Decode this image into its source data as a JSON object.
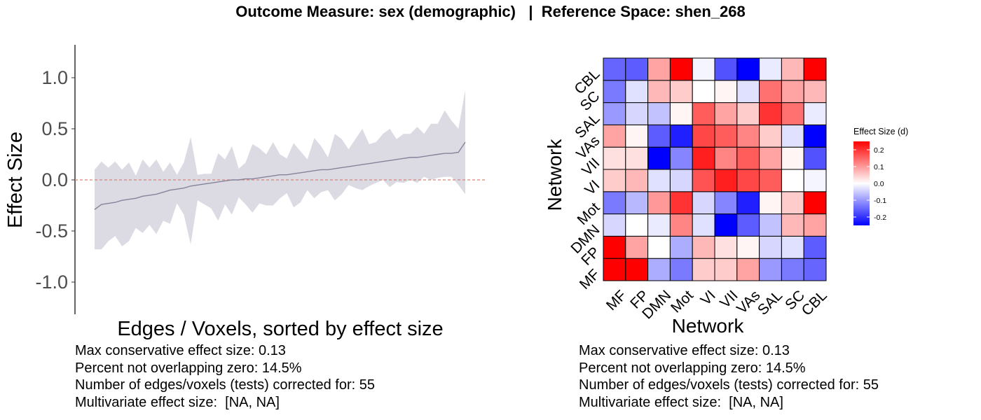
{
  "title": "Outcome Measure: sex (demographic)   |  Reference Space: shen_268",
  "chart_data": [
    {
      "type": "line",
      "ylabel": "Effect Size",
      "xlabel": "Edges / Voxels, sorted by effect size",
      "ylim": [
        -1.3,
        1.3
      ],
      "yticks": [
        -1.0,
        -0.5,
        0.0,
        0.5,
        1.0
      ],
      "ytick_labels": [
        "-1.0",
        "-0.5",
        "0.0",
        "0.5",
        "1.0"
      ],
      "reference_line": 0,
      "series": [
        {
          "values": [
            -0.29,
            -0.24,
            -0.23,
            -0.22,
            -0.2,
            -0.19,
            -0.18,
            -0.16,
            -0.15,
            -0.14,
            -0.12,
            -0.1,
            -0.09,
            -0.08,
            -0.06,
            -0.05,
            -0.04,
            -0.03,
            -0.02,
            -0.01,
            0.0,
            0.0,
            0.01,
            0.01,
            0.02,
            0.03,
            0.04,
            0.05,
            0.05,
            0.06,
            0.07,
            0.08,
            0.09,
            0.1,
            0.1,
            0.11,
            0.12,
            0.13,
            0.14,
            0.15,
            0.16,
            0.17,
            0.18,
            0.19,
            0.2,
            0.21,
            0.22,
            0.22,
            0.23,
            0.24,
            0.25,
            0.26,
            0.26,
            0.27,
            0.37
          ],
          "lower": [
            -0.68,
            -0.68,
            -0.6,
            -0.55,
            -0.65,
            -0.6,
            -0.47,
            -0.52,
            -0.44,
            -0.53,
            -0.4,
            -0.43,
            -0.23,
            -0.34,
            -0.63,
            -0.2,
            -0.24,
            -0.28,
            -0.4,
            -0.24,
            -0.34,
            -0.17,
            -0.24,
            -0.32,
            -0.23,
            -0.25,
            -0.25,
            -0.18,
            -0.13,
            -0.27,
            -0.22,
            -0.1,
            -0.18,
            -0.12,
            -0.1,
            -0.2,
            -0.14,
            -0.05,
            -0.08,
            -0.1,
            -0.06,
            -0.03,
            0.0,
            -0.07,
            -0.02,
            -0.03,
            0.0,
            -0.03,
            0.03,
            0.0,
            0.02,
            0.03,
            0.03,
            -0.05,
            -0.14
          ],
          "upper": [
            0.1,
            0.18,
            0.12,
            0.18,
            0.1,
            0.17,
            0.04,
            0.2,
            0.12,
            0.2,
            0.08,
            0.17,
            0.05,
            0.17,
            0.42,
            0.05,
            0.06,
            0.06,
            0.26,
            0.2,
            0.33,
            0.11,
            0.17,
            0.35,
            0.31,
            0.25,
            0.37,
            0.25,
            0.21,
            0.36,
            0.28,
            0.2,
            0.41,
            0.33,
            0.22,
            0.45,
            0.4,
            0.3,
            0.4,
            0.5,
            0.35,
            0.37,
            0.45,
            0.5,
            0.4,
            0.45,
            0.45,
            0.52,
            0.45,
            0.55,
            0.55,
            0.68,
            0.58,
            0.5,
            0.88
          ]
        }
      ],
      "colors": {
        "line": "#85839b",
        "band": "#dcdbe3",
        "ref_line": "#d98377"
      }
    },
    {
      "type": "heatmap",
      "xlabel": "Network",
      "ylabel": "Network",
      "categories": [
        "MF",
        "FP",
        "DMN",
        "Mot",
        "VI",
        "VII",
        "VAs",
        "SAL",
        "SC",
        "CBL"
      ],
      "values": [
        [
          0.25,
          0.25,
          -0.08,
          -0.13,
          0.05,
          0.05,
          0.09,
          -0.1,
          -0.13,
          -0.15
        ],
        [
          0.25,
          0.09,
          0.0,
          -0.08,
          0.07,
          0.03,
          0.01,
          -0.04,
          -0.03,
          -0.16
        ],
        [
          -0.04,
          0.0,
          -0.02,
          0.12,
          -0.03,
          -0.25,
          -0.16,
          -0.06,
          0.07,
          0.09
        ],
        [
          -0.13,
          -0.07,
          0.1,
          0.2,
          -0.04,
          -0.12,
          -0.22,
          0.01,
          0.05,
          0.25
        ],
        [
          0.05,
          0.07,
          -0.03,
          -0.04,
          0.17,
          0.22,
          0.18,
          0.16,
          0.0,
          -0.01
        ],
        [
          0.03,
          0.03,
          -0.25,
          -0.12,
          0.22,
          0.12,
          0.16,
          0.09,
          0.01,
          -0.17
        ],
        [
          0.09,
          0.01,
          -0.16,
          -0.22,
          0.18,
          0.16,
          0.12,
          0.05,
          -0.03,
          -0.25
        ],
        [
          -0.1,
          -0.04,
          -0.06,
          0.01,
          0.16,
          0.09,
          0.05,
          0.2,
          0.14,
          -0.02
        ],
        [
          -0.13,
          -0.03,
          0.07,
          0.05,
          0.0,
          0.01,
          -0.03,
          0.14,
          0.09,
          0.07
        ],
        [
          -0.15,
          -0.16,
          0.09,
          0.25,
          -0.01,
          -0.17,
          -0.25,
          -0.02,
          0.07,
          0.25
        ]
      ],
      "legend": {
        "title": "Effect Size (d)",
        "ticks": [
          0.2,
          0.1,
          0.0,
          -0.1,
          -0.2
        ],
        "tick_labels": [
          "0.2",
          "0.1",
          "0.0",
          "-0.1",
          "-0.2"
        ],
        "range": [
          -0.25,
          0.25
        ],
        "placement": "right"
      },
      "colors": {
        "low": "#0000ff",
        "mid": "#ffffff",
        "high": "#ff0000"
      }
    }
  ],
  "stats_left": [
    "Max conservative effect size: 0.13",
    "Percent not overlapping zero: 14.5%",
    "Number of edges/voxels (tests) corrected for: 55",
    "Multivariate effect size:  [NA, NA]"
  ],
  "stats_right": [
    "Max conservative effect size: 0.13",
    "Percent not overlapping zero: 14.5%",
    "Number of edges/voxels (tests) corrected for: 55",
    "Multivariate effect size:  [NA, NA]"
  ]
}
